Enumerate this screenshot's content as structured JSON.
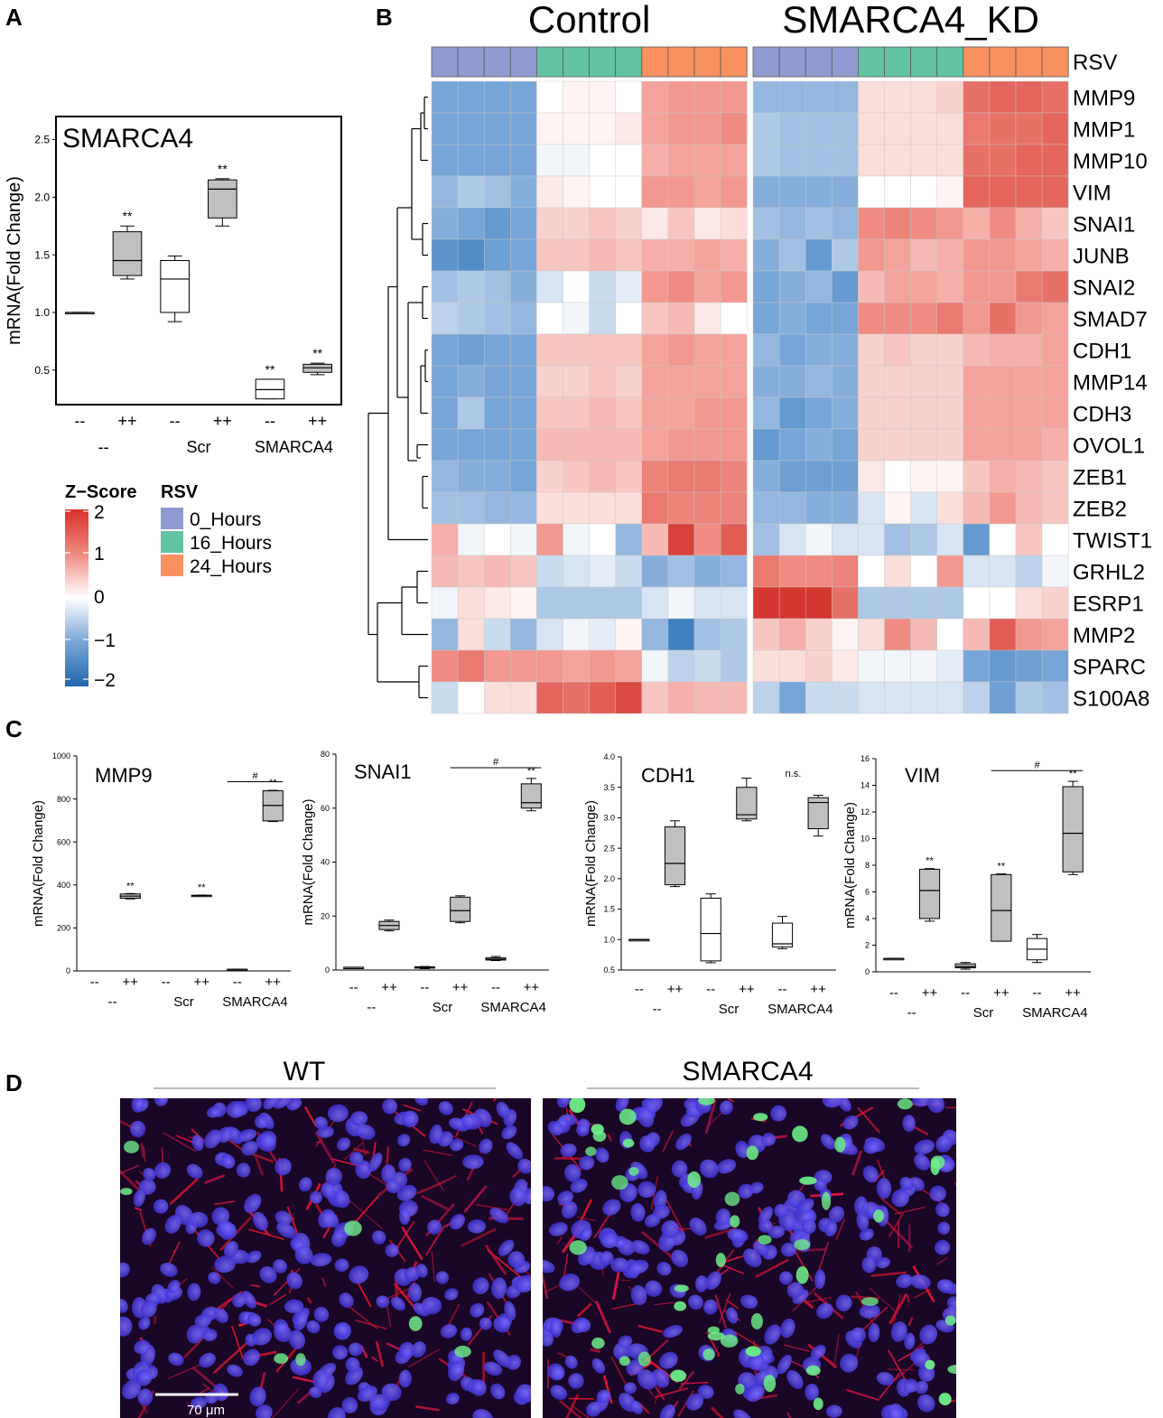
{
  "figure": {
    "panel_labels": [
      "A",
      "B",
      "C",
      "D"
    ]
  },
  "chart_data": [
    {
      "id": "A",
      "type": "box",
      "title": "SMARCA4",
      "ylabel": "mRNA(Fold Change)",
      "ylim": [
        0.2,
        2.7
      ],
      "yticks": [
        "0.5",
        "1.0",
        "1.5",
        "2.0",
        "2.5"
      ],
      "ytick_values": [
        0.5,
        1.0,
        1.5,
        2.0,
        2.5
      ],
      "treatment_labels": [
        "--",
        "++",
        "--",
        "++",
        "--",
        "++"
      ],
      "group_labels": [
        "--",
        "Scr",
        "SMARCA4"
      ],
      "boxes": [
        {
          "min": 1.0,
          "q1": 1.0,
          "median": 1.0,
          "q3": 1.0,
          "max": 1.0,
          "fill": "#c0c0c0",
          "sig": ""
        },
        {
          "min": 1.29,
          "q1": 1.32,
          "median": 1.45,
          "q3": 1.7,
          "max": 1.75,
          "fill": "#c0c0c0",
          "sig": "**"
        },
        {
          "min": 0.92,
          "q1": 1.0,
          "median": 1.29,
          "q3": 1.45,
          "max": 1.49,
          "fill": "#ffffff",
          "sig": ""
        },
        {
          "min": 1.75,
          "q1": 1.82,
          "median": 2.07,
          "q3": 2.15,
          "max": 2.16,
          "fill": "#c0c0c0",
          "sig": "**"
        },
        {
          "min": 0.25,
          "q1": 0.25,
          "median": 0.33,
          "q3": 0.42,
          "max": 0.42,
          "fill": "#ffffff",
          "sig": "**"
        },
        {
          "min": 0.46,
          "q1": 0.48,
          "median": 0.52,
          "q3": 0.55,
          "max": 0.56,
          "fill": "#c0c0c0",
          "sig": "**"
        }
      ]
    },
    {
      "id": "B",
      "type": "heatmap",
      "group_titles": [
        "Control",
        "SMARCA4_KD"
      ],
      "annotation_label": "RSV",
      "annotation_row": [
        0,
        0,
        0,
        0,
        1,
        1,
        1,
        1,
        2,
        2,
        2,
        2,
        0,
        0,
        0,
        0,
        1,
        1,
        1,
        1,
        2,
        2,
        2,
        2
      ],
      "annotation_colors": [
        "#8f9bd0",
        "#62c3a2",
        "#f8905f"
      ],
      "genes": [
        "MMP9",
        "MMP1",
        "MMP10",
        "VIM",
        "SNAI1",
        "JUNB",
        "SNAI2",
        "SMAD7",
        "CDH1",
        "MMP14",
        "CDH3",
        "OVOL1",
        "ZEB1",
        "ZEB2",
        "TWIST1",
        "GRHL2",
        "ESRP1",
        "MMP2",
        "SPARC",
        "S100A8"
      ],
      "values": [
        [
          -1.0,
          -1.0,
          -1.0,
          -1.0,
          0.0,
          0.1,
          0.1,
          0.0,
          0.8,
          0.9,
          0.9,
          0.9,
          -0.8,
          -0.8,
          -0.8,
          -0.8,
          0.3,
          0.3,
          0.3,
          0.4,
          1.3,
          1.4,
          1.4,
          1.3
        ],
        [
          -1.0,
          -1.0,
          -1.0,
          -1.0,
          0.1,
          0.1,
          0.1,
          0.2,
          0.8,
          0.9,
          0.9,
          1.0,
          -0.6,
          -0.7,
          -0.7,
          -0.7,
          0.3,
          0.3,
          0.3,
          0.3,
          1.2,
          1.3,
          1.3,
          1.4
        ],
        [
          -1.0,
          -1.0,
          -1.0,
          -1.0,
          -0.1,
          -0.1,
          0.0,
          0.0,
          0.7,
          0.8,
          0.8,
          0.8,
          -0.6,
          -0.7,
          -0.7,
          -0.7,
          0.3,
          0.3,
          0.3,
          0.3,
          1.3,
          1.3,
          1.4,
          1.4
        ],
        [
          -0.8,
          -0.6,
          -0.7,
          -0.9,
          0.2,
          0.1,
          0.0,
          0.0,
          0.9,
          0.9,
          0.8,
          0.9,
          -0.9,
          -0.9,
          -0.9,
          -0.9,
          0.0,
          0.0,
          0.0,
          0.1,
          1.4,
          1.4,
          1.4,
          1.4
        ],
        [
          -0.9,
          -1.0,
          -1.2,
          -1.0,
          0.4,
          0.4,
          0.5,
          0.4,
          0.2,
          0.5,
          0.2,
          0.3,
          -0.7,
          -0.8,
          -0.7,
          -0.8,
          1.0,
          1.1,
          1.0,
          0.9,
          0.7,
          1.0,
          0.7,
          0.5
        ],
        [
          -1.3,
          -1.4,
          -1.1,
          -1.0,
          0.5,
          0.5,
          0.6,
          0.5,
          0.7,
          0.7,
          0.8,
          0.7,
          -0.9,
          -0.7,
          -1.2,
          -0.6,
          0.9,
          0.8,
          0.6,
          0.7,
          0.9,
          0.9,
          0.8,
          0.7
        ],
        [
          -0.7,
          -0.6,
          -0.7,
          -0.9,
          -0.3,
          0.0,
          -0.4,
          -0.2,
          0.9,
          1.0,
          0.8,
          0.9,
          -1.0,
          -0.9,
          -0.8,
          -1.2,
          0.6,
          0.8,
          0.8,
          0.7,
          0.9,
          0.9,
          1.2,
          1.3
        ],
        [
          -0.5,
          -0.6,
          -0.7,
          -0.8,
          0.0,
          -0.1,
          -0.4,
          0.0,
          0.5,
          0.6,
          0.2,
          0.0,
          -1.0,
          -0.9,
          -1.0,
          -1.0,
          1.0,
          1.0,
          1.0,
          1.2,
          0.9,
          1.3,
          0.9,
          0.8
        ],
        [
          -1.0,
          -1.1,
          -1.0,
          -1.0,
          0.5,
          0.5,
          0.5,
          0.5,
          0.8,
          0.9,
          0.8,
          0.8,
          -0.8,
          -1.0,
          -0.9,
          -0.9,
          0.4,
          0.5,
          0.4,
          0.4,
          0.6,
          0.7,
          0.7,
          0.8
        ],
        [
          -1.0,
          -0.9,
          -1.0,
          -1.0,
          0.4,
          0.4,
          0.5,
          0.4,
          0.8,
          0.8,
          0.8,
          0.8,
          -0.9,
          -0.9,
          -0.8,
          -0.9,
          0.4,
          0.4,
          0.4,
          0.4,
          0.8,
          0.8,
          0.8,
          0.8
        ],
        [
          -1.0,
          -0.6,
          -1.0,
          -1.0,
          0.5,
          0.5,
          0.6,
          0.5,
          0.8,
          0.8,
          0.9,
          0.9,
          -0.8,
          -1.2,
          -1.0,
          -0.9,
          0.4,
          0.4,
          0.4,
          0.4,
          0.8,
          0.8,
          0.8,
          0.8
        ],
        [
          -1.0,
          -1.0,
          -1.0,
          -1.0,
          0.6,
          0.6,
          0.6,
          0.6,
          0.8,
          0.9,
          0.9,
          0.9,
          -1.2,
          -1.0,
          -0.9,
          -1.0,
          0.4,
          0.4,
          0.4,
          0.4,
          0.8,
          0.8,
          0.8,
          0.7
        ],
        [
          -0.8,
          -0.9,
          -0.9,
          -1.0,
          0.4,
          0.5,
          0.6,
          0.5,
          1.1,
          1.2,
          1.2,
          1.1,
          -0.9,
          -1.1,
          -1.1,
          -1.1,
          0.2,
          0.0,
          0.1,
          0.1,
          0.5,
          0.7,
          0.6,
          0.5
        ],
        [
          -0.7,
          -0.7,
          -0.8,
          -0.8,
          0.3,
          0.3,
          0.3,
          0.3,
          1.2,
          1.1,
          1.1,
          1.1,
          -0.8,
          -0.8,
          -0.9,
          -0.9,
          -0.3,
          0.1,
          -0.3,
          0.3,
          0.6,
          0.9,
          0.6,
          0.5
        ],
        [
          0.7,
          -0.1,
          0.0,
          -0.1,
          0.9,
          -0.1,
          0.0,
          -0.8,
          0.6,
          1.8,
          1.0,
          1.5,
          -0.7,
          -0.3,
          -0.1,
          -0.3,
          -0.3,
          -0.7,
          -0.6,
          -0.3,
          -1.2,
          0.0,
          0.5,
          0.0
        ],
        [
          0.6,
          0.5,
          0.6,
          0.5,
          -0.4,
          -0.3,
          -0.2,
          -0.4,
          -0.9,
          -0.7,
          -0.9,
          -0.8,
          1.2,
          1.0,
          1.0,
          1.1,
          0.0,
          0.3,
          0.0,
          0.9,
          -0.3,
          -0.3,
          -0.5,
          -0.1
        ],
        [
          -0.1,
          0.3,
          0.2,
          0.1,
          -0.6,
          -0.6,
          -0.6,
          -0.6,
          -0.3,
          -0.1,
          -0.3,
          -0.3,
          1.9,
          1.9,
          1.9,
          1.3,
          -0.6,
          -0.6,
          -0.6,
          -0.6,
          0.0,
          0.0,
          0.3,
          0.4
        ],
        [
          -0.8,
          0.3,
          -0.4,
          -0.8,
          -0.3,
          -0.1,
          -0.2,
          0.1,
          -0.8,
          -1.6,
          -0.7,
          -0.6,
          0.5,
          0.7,
          0.4,
          0.1,
          0.3,
          1.0,
          0.6,
          0.0,
          0.6,
          1.5,
          0.9,
          0.8
        ],
        [
          1.0,
          1.2,
          0.9,
          0.9,
          0.9,
          0.8,
          0.9,
          0.8,
          -0.1,
          -0.5,
          -0.4,
          -0.6,
          0.3,
          0.3,
          0.4,
          0.2,
          -0.1,
          -0.1,
          -0.1,
          -0.2,
          -1.0,
          -1.2,
          -1.1,
          -1.0
        ],
        [
          -0.4,
          0.0,
          0.3,
          0.3,
          1.4,
          1.3,
          1.5,
          1.7,
          0.5,
          0.7,
          0.6,
          0.6,
          -0.5,
          -1.0,
          -0.4,
          -0.4,
          -0.3,
          -0.3,
          -0.3,
          -0.3,
          -0.5,
          -1.1,
          -0.6,
          -0.7
        ]
      ],
      "zscore_legend": {
        "title": "Z−Score",
        "min": -2,
        "max": 2,
        "ticks": [
          "2",
          "1",
          "0",
          "−1",
          "−2"
        ]
      },
      "rsv_legend": {
        "title": "RSV",
        "labels": [
          "0_Hours",
          "16_Hours",
          "24_Hours"
        ]
      }
    },
    {
      "id": "C1",
      "type": "box",
      "title": "MMP9",
      "ylabel": "mRNA(Fold Change)",
      "ylim": [
        0,
        1000
      ],
      "yticks": [
        "0",
        "200",
        "400",
        "600",
        "800",
        "1000"
      ],
      "ytick_values": [
        0,
        200,
        400,
        600,
        800,
        1000
      ],
      "treatment_labels": [
        "--",
        "++",
        "--",
        "++",
        "--",
        "++"
      ],
      "group_labels": [
        "--",
        "Scr",
        "SMARCA4"
      ],
      "boxes": [
        {
          "min": 1,
          "q1": 1,
          "median": 1,
          "q3": 1,
          "max": 1,
          "fill": "#ffffff",
          "sig": "",
          "hide": true
        },
        {
          "min": 335,
          "q1": 338,
          "median": 348,
          "q3": 358,
          "max": 360,
          "fill": "#c0c0c0",
          "sig": "**"
        },
        {
          "min": 1,
          "q1": 1,
          "median": 1,
          "q3": 1,
          "max": 1,
          "fill": "#ffffff",
          "sig": "",
          "hide": true
        },
        {
          "min": 349,
          "q1": 350,
          "median": 351,
          "q3": 352,
          "max": 353,
          "fill": "#c0c0c0",
          "sig": "**"
        },
        {
          "min": 6,
          "q1": 6,
          "median": 7,
          "q3": 8,
          "max": 8,
          "fill": "#ffffff",
          "sig": ""
        },
        {
          "min": 695,
          "q1": 698,
          "median": 770,
          "q3": 838,
          "max": 840,
          "fill": "#c0c0c0",
          "sig": "**"
        }
      ],
      "bracket": {
        "from": 4,
        "to": 5,
        "value": 880,
        "label": "#"
      }
    },
    {
      "id": "C2",
      "type": "box",
      "title": "SNAI1",
      "ylabel": "mRNA(Fold Change)",
      "ylim": [
        0,
        80
      ],
      "yticks": [
        "0",
        "20",
        "40",
        "60",
        "80"
      ],
      "ytick_values": [
        0,
        20,
        40,
        60,
        80
      ],
      "treatment_labels": [
        "--",
        "++",
        "--",
        "++",
        "--",
        "++"
      ],
      "group_labels": [
        "--",
        "Scr",
        "SMARCA4"
      ],
      "boxes": [
        {
          "min": 1,
          "q1": 1,
          "median": 1,
          "q3": 1,
          "max": 1,
          "fill": "#ffffff",
          "sig": ""
        },
        {
          "min": 14.5,
          "q1": 15,
          "median": 16.5,
          "q3": 18,
          "max": 18.5,
          "fill": "#c0c0c0",
          "sig": ""
        },
        {
          "min": 0.5,
          "q1": 0.7,
          "median": 1,
          "q3": 1.2,
          "max": 1.3,
          "fill": "#ffffff",
          "sig": ""
        },
        {
          "min": 17.5,
          "q1": 18,
          "median": 22,
          "q3": 27,
          "max": 27.5,
          "fill": "#c0c0c0",
          "sig": ""
        },
        {
          "min": 3.5,
          "q1": 3.7,
          "median": 4,
          "q3": 4.5,
          "max": 5,
          "fill": "#c0c0c0",
          "sig": ""
        },
        {
          "min": 59,
          "q1": 60,
          "median": 62,
          "q3": 69,
          "max": 71,
          "fill": "#c0c0c0",
          "sig": "**"
        }
      ],
      "bracket": {
        "from": 3,
        "to": 5,
        "value": 75,
        "label": "#"
      }
    },
    {
      "id": "C3",
      "type": "box",
      "title": "CDH1",
      "ylabel": "mRNA(Fold Change)",
      "ylim": [
        0.5,
        4.0
      ],
      "yticks": [
        "0.5",
        "1.0",
        "1.5",
        "2.0",
        "2.5",
        "3.0",
        "3.5",
        "4.0"
      ],
      "ytick_values": [
        0.5,
        1.0,
        1.5,
        2.0,
        2.5,
        3.0,
        3.5,
        4.0
      ],
      "treatment_labels": [
        "--",
        "++",
        "--",
        "++",
        "--",
        "++"
      ],
      "group_labels": [
        "--",
        "Scr",
        "SMARCA4"
      ],
      "boxes": [
        {
          "min": 1,
          "q1": 1,
          "median": 1,
          "q3": 1,
          "max": 1,
          "fill": "#ffffff",
          "sig": ""
        },
        {
          "min": 1.87,
          "q1": 1.9,
          "median": 2.25,
          "q3": 2.85,
          "max": 2.95,
          "fill": "#c0c0c0",
          "sig": ""
        },
        {
          "min": 0.62,
          "q1": 0.65,
          "median": 1.1,
          "q3": 1.68,
          "max": 1.75,
          "fill": "#ffffff",
          "sig": ""
        },
        {
          "min": 2.95,
          "q1": 2.98,
          "median": 3.05,
          "q3": 3.5,
          "max": 3.65,
          "fill": "#c0c0c0",
          "sig": ""
        },
        {
          "min": 0.85,
          "q1": 0.88,
          "median": 0.93,
          "q3": 1.27,
          "max": 1.38,
          "fill": "#ffffff",
          "sig": ""
        },
        {
          "min": 2.7,
          "q1": 2.82,
          "median": 3.25,
          "q3": 3.33,
          "max": 3.37,
          "fill": "#c0c0c0",
          "sig": ""
        }
      ],
      "annotation": "n.s."
    },
    {
      "id": "C4",
      "type": "box",
      "title": "VIM",
      "ylabel": "mRNA(Fold Change)",
      "ylim": [
        0,
        16
      ],
      "yticks": [
        "0",
        "2",
        "4",
        "6",
        "8",
        "10",
        "12",
        "14",
        "16"
      ],
      "ytick_values": [
        0,
        2,
        4,
        6,
        8,
        10,
        12,
        14,
        16
      ],
      "treatment_labels": [
        "--",
        "++",
        "--",
        "++",
        "--",
        "++"
      ],
      "group_labels": [
        "--",
        "Scr",
        "SMARCA4"
      ],
      "boxes": [
        {
          "min": 1,
          "q1": 1,
          "median": 1,
          "q3": 1,
          "max": 1,
          "fill": "#ffffff",
          "sig": ""
        },
        {
          "min": 3.8,
          "q1": 4,
          "median": 6.1,
          "q3": 7.7,
          "max": 7.75,
          "fill": "#c0c0c0",
          "sig": "**"
        },
        {
          "min": 0.2,
          "q1": 0.3,
          "median": 0.4,
          "q3": 0.6,
          "max": 0.7,
          "fill": "#c0c0c0",
          "sig": ""
        },
        {
          "min": 2.3,
          "q1": 2.3,
          "median": 4.6,
          "q3": 7.3,
          "max": 7.35,
          "fill": "#c0c0c0",
          "sig": "**"
        },
        {
          "min": 0.7,
          "q1": 0.9,
          "median": 1.7,
          "q3": 2.5,
          "max": 2.8,
          "fill": "#ffffff",
          "sig": ""
        },
        {
          "min": 7.3,
          "q1": 7.5,
          "median": 10.4,
          "q3": 13.9,
          "max": 14.3,
          "fill": "#c0c0c0",
          "sig": "**"
        }
      ],
      "bracket": {
        "from": 3,
        "to": 5,
        "value": 15.1,
        "label": "#"
      }
    }
  ],
  "panel_d": {
    "labels": [
      "WT",
      "SMARCA4"
    ],
    "scale_bar": "70 μm"
  }
}
